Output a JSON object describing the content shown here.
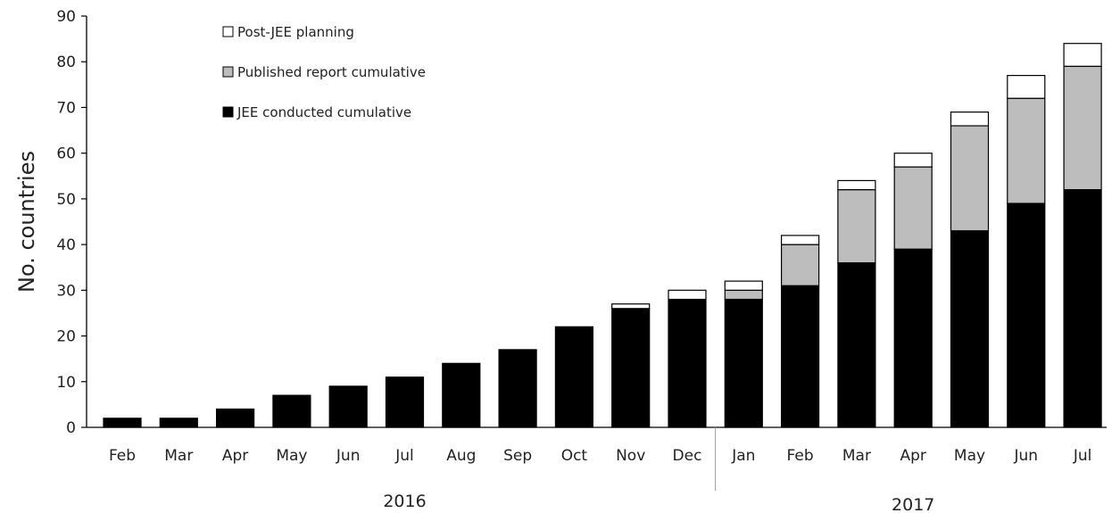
{
  "chart_data": {
    "type": "bar",
    "stacked": true,
    "categories": [
      "Feb",
      "Mar",
      "Apr",
      "May",
      "Jun",
      "Jul",
      "Aug",
      "Sep",
      "Oct",
      "Nov",
      "Dec",
      "Jan",
      "Feb",
      "Mar",
      "Apr",
      "May",
      "Jun",
      "Jul"
    ],
    "year_groups": [
      {
        "label": "2016",
        "from": 0,
        "to": 10
      },
      {
        "label": "2017",
        "from": 11,
        "to": 17
      }
    ],
    "ylabel": "No. countries",
    "xlabel": "",
    "ylim": [
      0,
      90
    ],
    "yticks": [
      0,
      10,
      20,
      30,
      40,
      50,
      60,
      70,
      80,
      90
    ],
    "grid": false,
    "legend_position": "top-left",
    "series": [
      {
        "name": "JEE conducted cumulative",
        "color": "#000000",
        "values": [
          2,
          2,
          4,
          7,
          9,
          11,
          14,
          17,
          22,
          26,
          28,
          28,
          31,
          36,
          39,
          43,
          49,
          52
        ]
      },
      {
        "name": "Published report cumulative",
        "color": "#bdbdbd",
        "values": [
          0,
          0,
          0,
          0,
          0,
          0,
          0,
          0,
          0,
          0,
          0,
          2,
          9,
          16,
          18,
          23,
          23,
          27
        ]
      },
      {
        "name": "Post-JEE planning",
        "color": "#ffffff",
        "values": [
          0,
          0,
          0,
          0,
          0,
          0,
          0,
          0,
          0,
          1,
          2,
          2,
          2,
          2,
          3,
          3,
          5,
          5
        ]
      }
    ],
    "legend_order": [
      2,
      1,
      0
    ]
  }
}
